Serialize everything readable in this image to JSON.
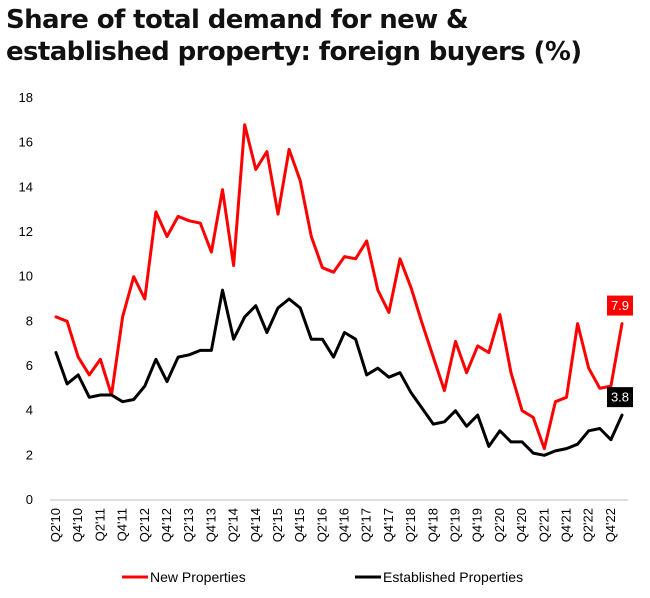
{
  "title_lines": [
    "Share of total demand for new &",
    "established property: foreign buyers (%)"
  ],
  "chart_data": {
    "type": "line",
    "title": "Share of total demand for new & established property: foreign buyers (%)",
    "ylim": [
      0,
      18
    ],
    "yticks": [
      0,
      2,
      4,
      6,
      8,
      10,
      12,
      14,
      16,
      18
    ],
    "grid": false,
    "legend_position": "bottom",
    "x": [
      "Q2'10",
      "Q3'10",
      "Q4'10",
      "Q1'11",
      "Q2'11",
      "Q3'11",
      "Q4'11",
      "Q1'12",
      "Q2'12",
      "Q3'12",
      "Q4'12",
      "Q1'13",
      "Q2'13",
      "Q3'13",
      "Q4'13",
      "Q1'14",
      "Q2'14",
      "Q3'14",
      "Q4'14",
      "Q1'15",
      "Q2'15",
      "Q3'15",
      "Q4'15",
      "Q1'16",
      "Q2'16",
      "Q3'16",
      "Q4'16",
      "Q1'17",
      "Q2'17",
      "Q3'17",
      "Q4'17",
      "Q1'18",
      "Q2'18",
      "Q3'18",
      "Q4'18",
      "Q1'19",
      "Q2'19",
      "Q3'19",
      "Q4'19",
      "Q1'20",
      "Q2'20",
      "Q3'20",
      "Q4'20",
      "Q1'21",
      "Q2'21",
      "Q3'21",
      "Q4'21",
      "Q1'22",
      "Q2'22",
      "Q3'22",
      "Q4'22",
      "Q1'23"
    ],
    "xtick_labels": [
      "Q2'10",
      "Q4'10",
      "Q2'11",
      "Q4'11",
      "Q2'12",
      "Q4'12",
      "Q2'13",
      "Q4'13",
      "Q2'14",
      "Q4'14",
      "Q2'15",
      "Q4'15",
      "Q2'16",
      "Q4'16",
      "Q2'17",
      "Q4'17",
      "Q2'18",
      "Q4'18",
      "Q2'19",
      "Q4'19",
      "Q2'20",
      "Q4'20",
      "Q2'21",
      "Q4'21",
      "Q2'22",
      "Q4'22"
    ],
    "series": [
      {
        "name": "New Properties",
        "color": "#ff0000",
        "values": [
          8.2,
          8.0,
          6.4,
          5.6,
          6.3,
          4.7,
          8.2,
          10.0,
          9.0,
          12.9,
          11.8,
          12.7,
          12.5,
          12.4,
          11.1,
          13.9,
          10.5,
          16.8,
          14.8,
          15.6,
          12.8,
          15.7,
          14.3,
          11.8,
          10.4,
          10.2,
          10.9,
          10.8,
          11.6,
          9.4,
          8.4,
          10.8,
          9.5,
          7.9,
          6.4,
          4.9,
          7.1,
          5.7,
          6.9,
          6.6,
          8.3,
          5.7,
          4.0,
          3.7,
          2.3,
          4.4,
          4.6,
          7.9,
          5.9,
          5.0,
          5.1,
          7.9
        ],
        "end_label": "7.9"
      },
      {
        "name": "Established Properties",
        "color": "#000000",
        "values": [
          6.6,
          5.2,
          5.6,
          4.6,
          4.7,
          4.7,
          4.4,
          4.5,
          5.1,
          6.3,
          5.3,
          6.4,
          6.5,
          6.7,
          6.7,
          9.4,
          7.2,
          8.2,
          8.7,
          7.5,
          8.6,
          9.0,
          8.6,
          7.2,
          7.2,
          6.4,
          7.5,
          7.2,
          5.6,
          5.9,
          5.5,
          5.7,
          4.8,
          4.1,
          3.4,
          3.5,
          4.0,
          3.3,
          3.8,
          2.4,
          3.1,
          2.6,
          2.6,
          2.1,
          2.0,
          2.2,
          2.3,
          2.5,
          3.1,
          3.2,
          2.7,
          3.8
        ],
        "end_label": "3.8"
      }
    ]
  }
}
